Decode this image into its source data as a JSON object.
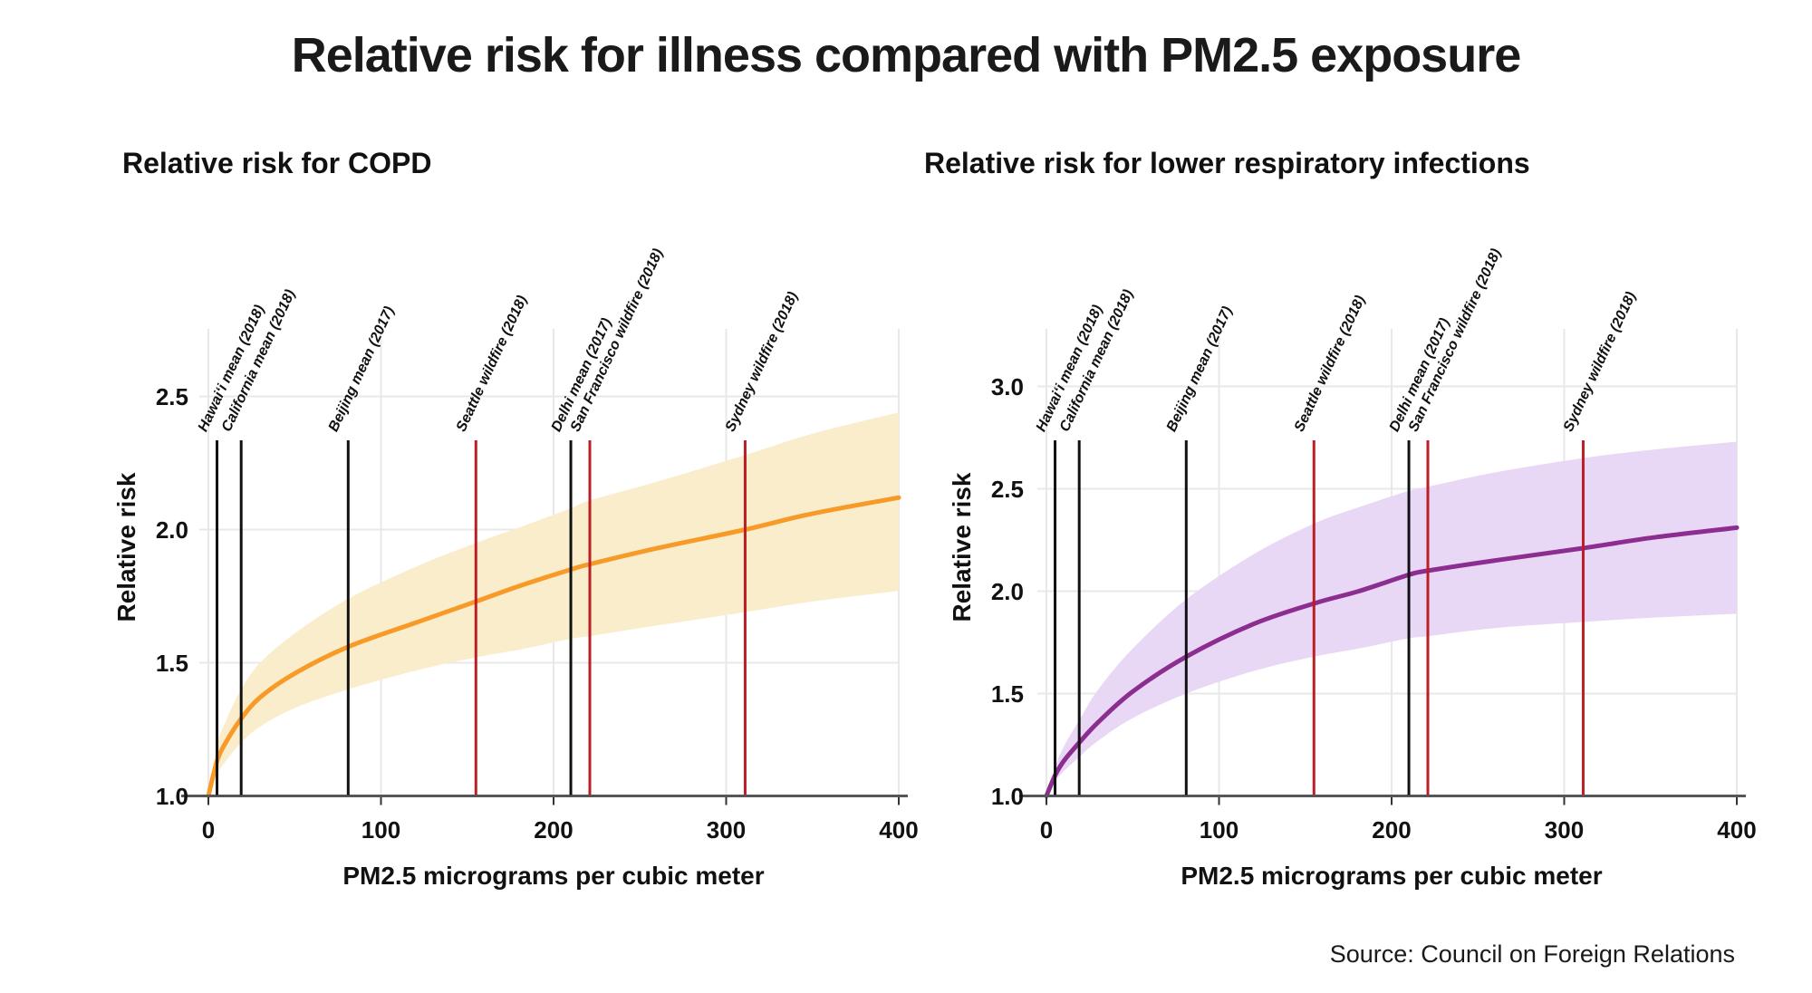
{
  "title": "Relative risk for illness compared with PM2.5 exposure",
  "source": "Source: Council on Foreign Relations",
  "colors": {
    "copd_line": "#F79A28",
    "copd_band": "#FAEDCC",
    "lri_line": "#8C2D90",
    "lri_band": "#E9D8F5",
    "mean_line": "#111111",
    "wildfire_line": "#BB1E24",
    "grid": "#E8E8E8",
    "axis": "#54565A",
    "tick": "#333333",
    "text": "#1A1A1A"
  },
  "axis": {
    "x_label": "PM2.5 micrograms per cubic meter",
    "y_label": "Relative risk",
    "x_ticks": [
      0,
      100,
      200,
      300,
      400
    ],
    "xlim": [
      0,
      400
    ]
  },
  "reference_lines": [
    {
      "label": "Hawaiʻi mean (2018)",
      "x": 5,
      "type": "mean"
    },
    {
      "label": "California mean (2018)",
      "x": 19,
      "type": "mean"
    },
    {
      "label": "Beijing mean (2017)",
      "x": 81,
      "type": "mean"
    },
    {
      "label": "Seattle wildfire (2018)",
      "x": 155,
      "type": "wildfire"
    },
    {
      "label": "Delhi mean (2017)",
      "x": 210,
      "type": "mean"
    },
    {
      "label": "San Francisco wildfire (2018)",
      "x": 221,
      "type": "wildfire"
    },
    {
      "label": "Sydney wildfire (2018)",
      "x": 311,
      "type": "wildfire"
    }
  ],
  "chart_data": [
    {
      "type": "area",
      "title": "Relative risk for COPD",
      "xlabel": "PM2.5 micrograms per cubic meter",
      "ylabel": "Relative risk",
      "xlim": [
        0,
        400
      ],
      "ylim": [
        1.0,
        2.5
      ],
      "y_ticks": [
        1.0,
        1.5,
        2.0,
        2.5
      ],
      "grid": true,
      "x": [
        0,
        5,
        10,
        19,
        30,
        50,
        81,
        120,
        155,
        181,
        210,
        221,
        260,
        311,
        350,
        400
      ],
      "series": [
        {
          "name": "relative risk (central estimate)",
          "values": [
            1.0,
            1.13,
            1.2,
            1.29,
            1.37,
            1.46,
            1.56,
            1.65,
            1.73,
            1.79,
            1.85,
            1.87,
            1.93,
            2.0,
            2.06,
            2.12
          ]
        },
        {
          "name": "lower bound",
          "values": [
            1.0,
            1.08,
            1.13,
            1.2,
            1.26,
            1.33,
            1.4,
            1.47,
            1.52,
            1.55,
            1.59,
            1.6,
            1.64,
            1.69,
            1.73,
            1.77
          ]
        },
        {
          "name": "upper bound",
          "values": [
            1.0,
            1.19,
            1.28,
            1.4,
            1.5,
            1.61,
            1.74,
            1.86,
            1.95,
            2.01,
            2.08,
            2.11,
            2.18,
            2.28,
            2.36,
            2.44
          ]
        }
      ]
    },
    {
      "type": "area",
      "title": "Relative risk for lower respiratory infections",
      "xlabel": "PM2.5 micrograms per cubic meter",
      "ylabel": "Relative risk",
      "xlim": [
        0,
        400
      ],
      "ylim": [
        1.0,
        3.0
      ],
      "y_ticks": [
        1.0,
        1.5,
        2.0,
        2.5,
        3.0
      ],
      "grid": true,
      "x": [
        0,
        5,
        10,
        19,
        30,
        50,
        81,
        120,
        155,
        181,
        210,
        221,
        260,
        311,
        350,
        400
      ],
      "series": [
        {
          "name": "relative risk (central estimate)",
          "values": [
            1.0,
            1.1,
            1.17,
            1.26,
            1.36,
            1.51,
            1.68,
            1.84,
            1.94,
            2.0,
            2.08,
            2.1,
            2.15,
            2.21,
            2.26,
            2.31
          ]
        },
        {
          "name": "lower bound",
          "values": [
            1.0,
            1.07,
            1.12,
            1.19,
            1.27,
            1.38,
            1.5,
            1.61,
            1.68,
            1.72,
            1.77,
            1.78,
            1.82,
            1.85,
            1.87,
            1.89
          ]
        },
        {
          "name": "upper bound",
          "values": [
            1.0,
            1.14,
            1.24,
            1.37,
            1.52,
            1.72,
            1.96,
            2.18,
            2.33,
            2.41,
            2.49,
            2.51,
            2.58,
            2.65,
            2.69,
            2.73
          ]
        }
      ]
    }
  ]
}
